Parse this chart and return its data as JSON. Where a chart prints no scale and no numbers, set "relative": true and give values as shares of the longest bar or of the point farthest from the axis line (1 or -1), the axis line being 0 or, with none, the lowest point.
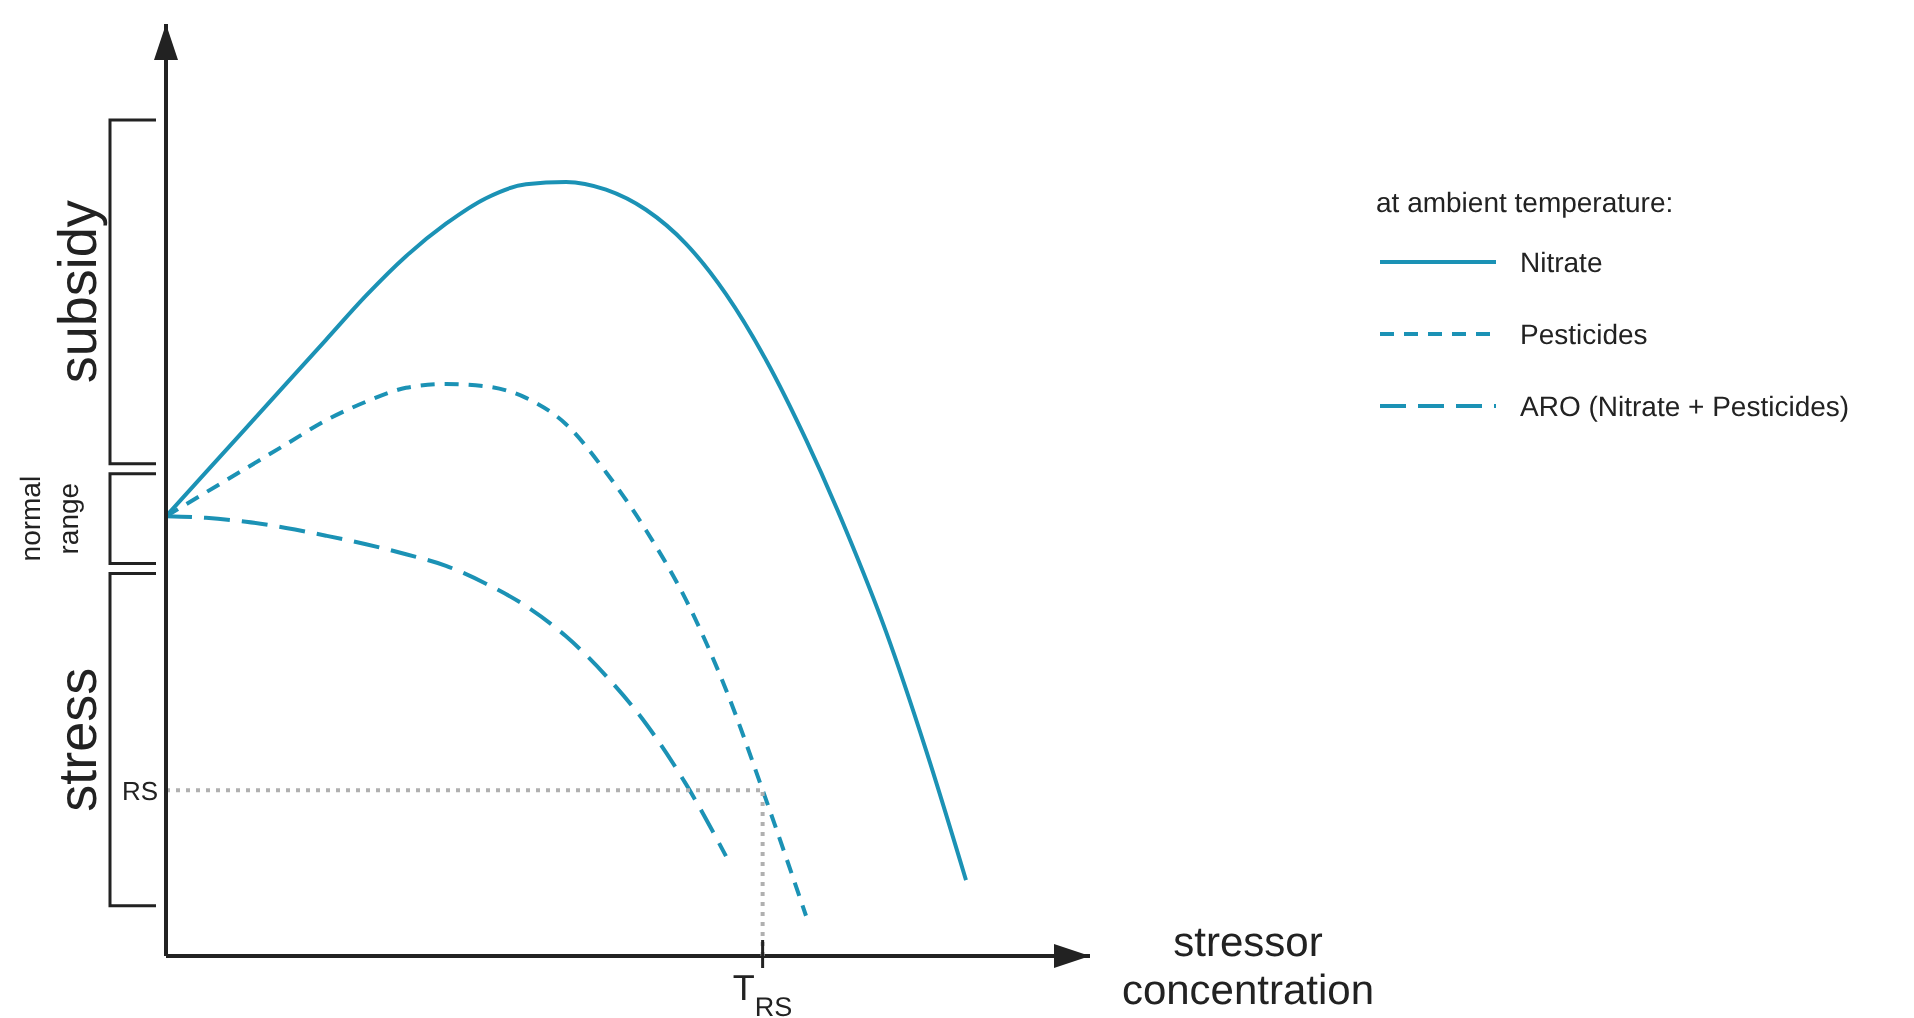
{
  "chart_data": {
    "type": "line",
    "relative": true,
    "xlabel": "stressor concentration",
    "legend_title": "at ambient temperature:",
    "legend": "right",
    "marker": "none",
    "categories": [
      null,
      null,
      null,
      null,
      null,
      null,
      null,
      null,
      null,
      null,
      null,
      null,
      null,
      null,
      null,
      null,
      null,
      null,
      null,
      null,
      null
    ],
    "series": [
      {
        "name": "Nitrate",
        "color": "#1b92b5",
        "line_style": "solid",
        "values": [
          0.568,
          0.625,
          0.682,
          0.739,
          0.796,
          0.853,
          0.904,
          0.946,
          0.979,
          0.997,
          1.0,
          0.99,
          0.964,
          0.92,
          0.855,
          0.77,
          0.667,
          0.55,
          0.419,
          0.266,
          0.098
        ]
      },
      {
        "name": "Pesticides",
        "color": "#1b92b5",
        "line_style": "dashed",
        "values": [
          0.568,
          0.599,
          0.63,
          0.661,
          0.692,
          0.716,
          0.734,
          0.739,
          0.736,
          0.721,
          0.687,
          0.625,
          0.55,
          0.46,
          0.344,
          0.202,
          0.052,
          null,
          null,
          null,
          null
        ]
      },
      {
        "name": "ARO (Nitrate + Pesticides)",
        "color": "#1b92b5",
        "line_style": "longdash",
        "values": [
          0.568,
          0.566,
          0.561,
          0.553,
          0.543,
          0.532,
          0.519,
          0.504,
          0.481,
          0.452,
          0.413,
          0.362,
          0.3,
          0.222,
          0.129,
          null,
          null,
          null,
          null,
          null,
          null
        ]
      }
    ],
    "ref_lines": [
      {
        "axis": "y",
        "value": 0.214,
        "label": "RS",
        "color": "#b0b0b0",
        "line_style": "dotted"
      }
    ],
    "annotations": [
      "T$_{RS}$",
      "subsidy",
      "normal range",
      "stress"
    ]
  }
}
